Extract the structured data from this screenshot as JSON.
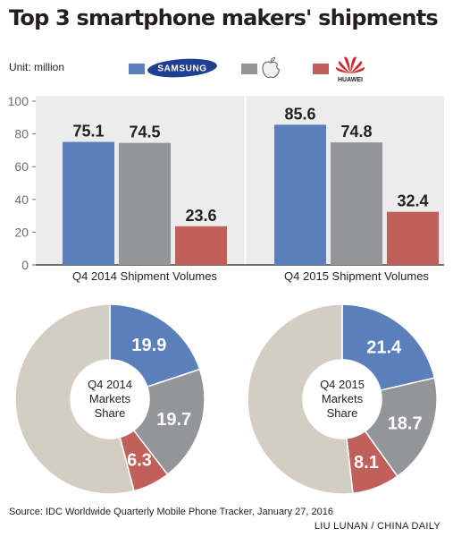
{
  "title": "Top 3 smartphone makers' shipments",
  "unit_label": "Unit: million",
  "legend": [
    {
      "brand": "Samsung",
      "logo_text": "SAMSUNG",
      "color": "#5b7fba",
      "icon": "samsung-logo"
    },
    {
      "brand": "Apple",
      "icon": "apple-logo",
      "color": "#939598"
    },
    {
      "brand": "Huawei",
      "logo_text": "HUAWEI",
      "color": "#c0605a",
      "icon": "huawei-logo"
    }
  ],
  "chart_data": [
    {
      "type": "bar",
      "categories": [
        "Q4 2014 Shipment Volumes",
        "Q4 2015 Shipment Volumes"
      ],
      "series": [
        {
          "name": "Samsung",
          "color": "#5b7fba",
          "values": [
            75.1,
            85.6
          ]
        },
        {
          "name": "Apple",
          "color": "#939598",
          "values": [
            74.5,
            74.8
          ]
        },
        {
          "name": "Huawei",
          "color": "#c0605a",
          "values": [
            23.6,
            32.4
          ]
        }
      ],
      "value_labels": [
        [
          "75.1",
          "74.5",
          "23.6"
        ],
        [
          "85.6",
          "74.8",
          "32.4"
        ]
      ],
      "ylim": [
        0,
        100
      ],
      "yticks": [
        "0",
        "20",
        "40",
        "60",
        "80",
        "100"
      ],
      "grid": false
    },
    {
      "type": "pie",
      "center_label": [
        "Q4 2014",
        "Markets",
        "Share"
      ],
      "slices": [
        {
          "brand": "Samsung",
          "value": 19.9,
          "label": "19.9",
          "color": "#5b7fba"
        },
        {
          "brand": "Apple",
          "value": 19.7,
          "label": "19.7",
          "color": "#939598"
        },
        {
          "brand": "Huawei",
          "value": 6.3,
          "label": "6.3",
          "color": "#c0605a"
        },
        {
          "brand": "Others",
          "value": 54.1,
          "color": "#d4cdc2"
        }
      ]
    },
    {
      "type": "pie",
      "center_label": [
        "Q4 2015",
        "Markets",
        "Share"
      ],
      "slices": [
        {
          "brand": "Samsung",
          "value": 21.4,
          "label": "21.4",
          "color": "#5b7fba"
        },
        {
          "brand": "Apple",
          "value": 18.7,
          "label": "18.7",
          "color": "#939598"
        },
        {
          "brand": "Huawei",
          "value": 8.1,
          "label": "8.1",
          "color": "#c0605a"
        },
        {
          "brand": "Others",
          "value": 51.8,
          "color": "#d4cdc2"
        }
      ]
    }
  ],
  "source": "Source: IDC Worldwide Quarterly Mobile Phone Tracker, January 27, 2016",
  "credit": "LIU LUNAN / CHINA DAILY"
}
